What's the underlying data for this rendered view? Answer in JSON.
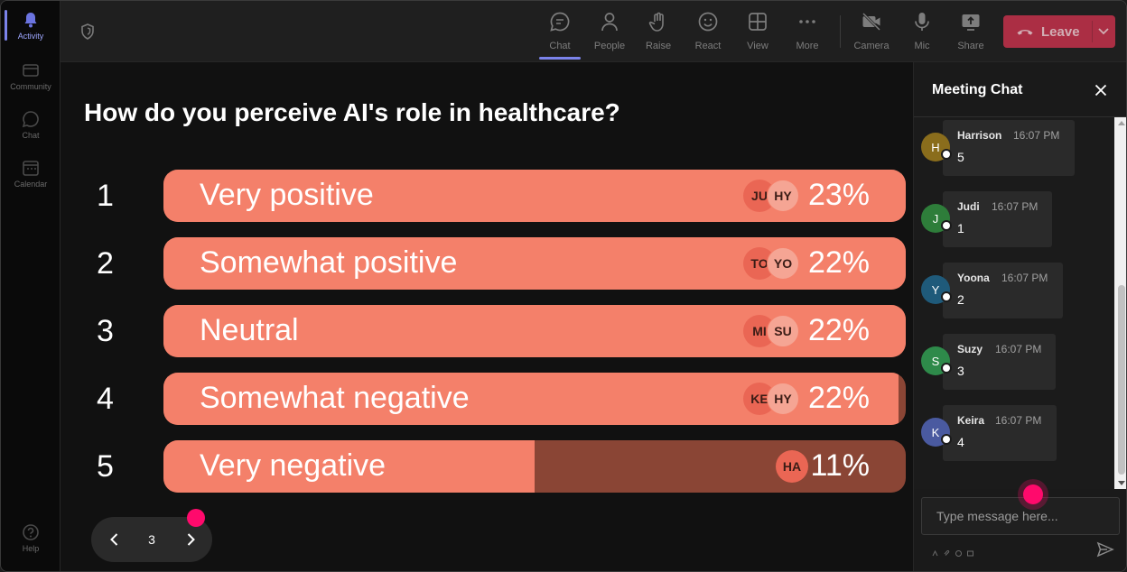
{
  "rail": {
    "items": [
      {
        "label": "Activity",
        "icon": "bell-icon",
        "active": true
      },
      {
        "label": "Community",
        "icon": "community-icon",
        "active": false
      },
      {
        "label": "Chat",
        "icon": "chat-icon",
        "active": false
      },
      {
        "label": "Calendar",
        "icon": "calendar-icon",
        "active": false
      }
    ],
    "help_label": "Help"
  },
  "toolbar": {
    "chat_label": "Chat",
    "people_label": "People",
    "raise_label": "Raise",
    "react_label": "React",
    "view_label": "View",
    "more_label": "More",
    "camera_label": "Camera",
    "mic_label": "Mic",
    "share_label": "Share",
    "leave_label": "Leave"
  },
  "poll": {
    "question": "How do you perceive AI's role in healthcare?",
    "options": [
      {
        "num": "1",
        "label": "Very positive",
        "percent": "23%",
        "fill": 1.0,
        "avatars": [
          "JU",
          "HY"
        ]
      },
      {
        "num": "2",
        "label": "Somewhat positive",
        "percent": "22%",
        "fill": 1.0,
        "avatars": [
          "TO",
          "YO"
        ]
      },
      {
        "num": "3",
        "label": "Neutral",
        "percent": "22%",
        "fill": 1.0,
        "avatars": [
          "MI",
          "SU"
        ]
      },
      {
        "num": "4",
        "label": "Somewhat negative",
        "percent": "22%",
        "fill": 0.99,
        "avatars": [
          "KE",
          "HY"
        ]
      },
      {
        "num": "5",
        "label": "Very negative",
        "percent": "11%",
        "fill": 0.5,
        "avatars": [
          "HA"
        ]
      }
    ],
    "page": "3"
  },
  "chat": {
    "title": "Meeting Chat",
    "messages": [
      {
        "initial": "H",
        "name": "Harrison",
        "time": "16:07 PM",
        "text": "5",
        "color": "#8a6d1c"
      },
      {
        "initial": "J",
        "name": "Judi",
        "time": "16:07 PM",
        "text": "1",
        "color": "#2e7d3a"
      },
      {
        "initial": "Y",
        "name": "Yoona",
        "time": "16:07 PM",
        "text": "2",
        "color": "#1f5a7a"
      },
      {
        "initial": "S",
        "name": "Suzy",
        "time": "16:07 PM",
        "text": "3",
        "color": "#2e8a4a"
      },
      {
        "initial": "K",
        "name": "Keira",
        "time": "16:07 PM",
        "text": "4",
        "color": "#4a5aa0"
      }
    ],
    "input_placeholder": "Type message here..."
  },
  "colors": {
    "bar_fill": "#f4806a",
    "bar_track": "#8a4535",
    "accent": "#7b83eb",
    "leave": "#c4314b",
    "cursor": "#ff0a6c"
  }
}
